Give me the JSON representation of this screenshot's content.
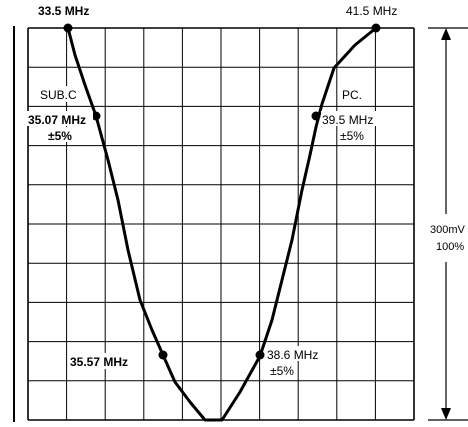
{
  "labels": {
    "top_left_freq": "33.5 MHz",
    "top_right_freq": "41.5 MHz",
    "sub_c": "SUB.C",
    "pc": "PC.",
    "sub_c_freq": "35.07 MHz",
    "sub_c_tol": "±5%",
    "pc_freq": "39.5 MHz",
    "pc_tol": "±5%",
    "low_left_freq": "35.57 MHz",
    "low_right_freq": "38.6 MHz",
    "low_right_tol": "±5%",
    "amplitude_value": "300mV",
    "amplitude_percent": "100%"
  },
  "colors": {
    "line": "#000000",
    "background": "#ffffff"
  }
}
